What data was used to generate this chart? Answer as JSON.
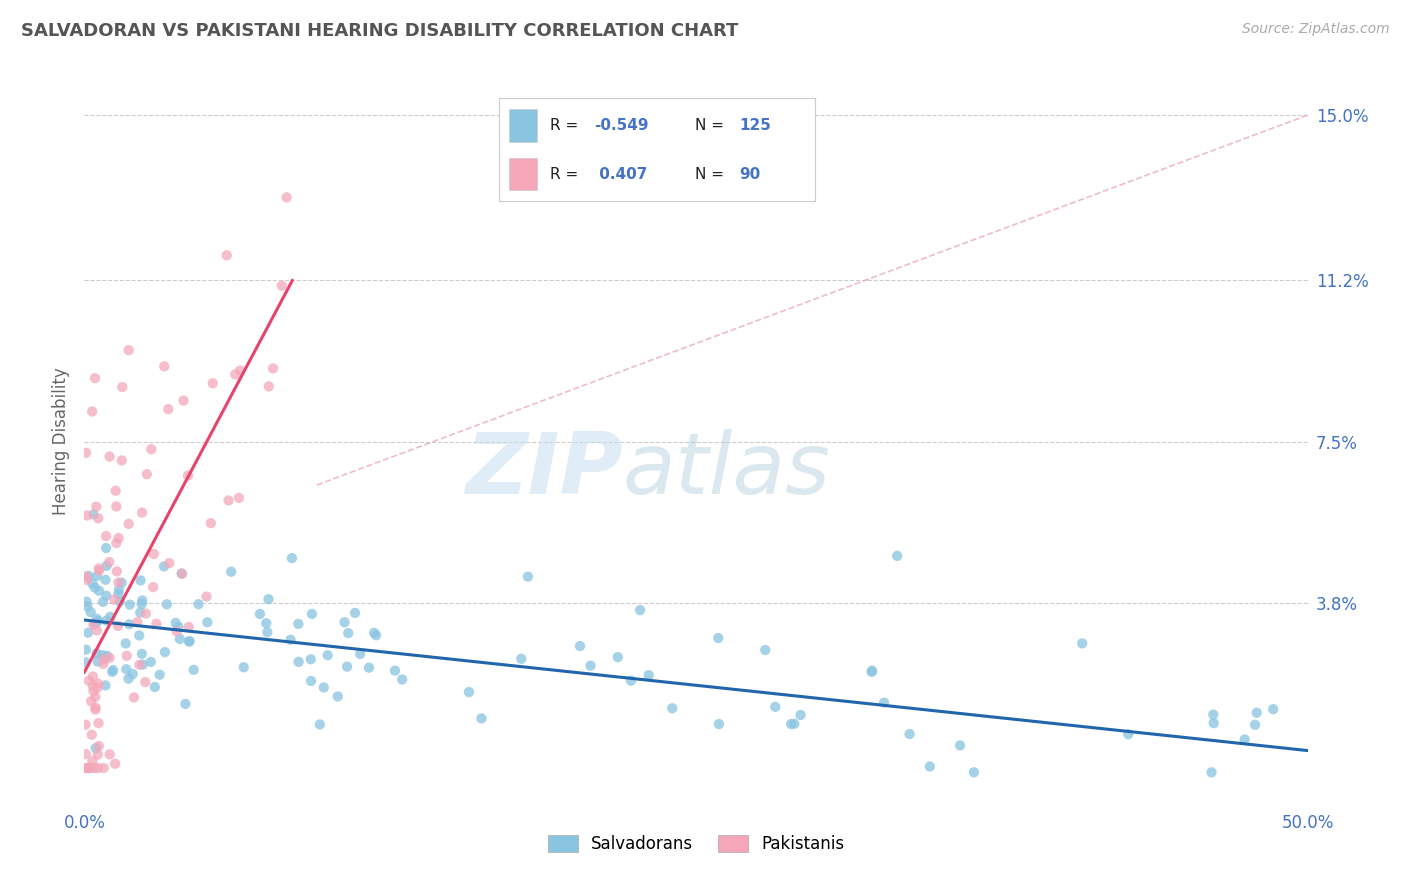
{
  "title": "SALVADORAN VS PAKISTANI HEARING DISABILITY CORRELATION CHART",
  "source": "Source: ZipAtlas.com",
  "ylabel": "Hearing Disability",
  "xlim": [
    0.0,
    0.5
  ],
  "ylim": [
    -0.008,
    0.158
  ],
  "legend_blue_R": "-0.549",
  "legend_blue_N": "125",
  "legend_pink_R": "0.407",
  "legend_pink_N": "90",
  "legend_blue_label": "Salvadorans",
  "legend_pink_label": "Pakistanis",
  "blue_scatter_color": "#89C4E1",
  "pink_scatter_color": "#F4A7B9",
  "blue_line_color": "#2166AC",
  "pink_line_color": "#E8436A",
  "diag_line_color": "#E8A0B0",
  "title_color": "#555555",
  "axis_label_color": "#4472C4",
  "background_color": "#ffffff",
  "grid_color": "#cccccc",
  "ytick_positions": [
    0.038,
    0.075,
    0.112,
    0.15
  ],
  "ytick_labels": [
    "3.8%",
    "7.5%",
    "11.2%",
    "15.0%"
  ],
  "blue_line_x0": 0.0,
  "blue_line_y0": 0.034,
  "blue_line_x1": 0.5,
  "blue_line_y1": 0.004,
  "pink_line_x0": 0.0,
  "pink_line_y0": 0.022,
  "pink_line_x1": 0.085,
  "pink_line_y1": 0.112,
  "diag_line_x0": 0.095,
  "diag_line_y0": 0.065,
  "diag_line_x1": 0.5,
  "diag_line_y1": 0.15
}
